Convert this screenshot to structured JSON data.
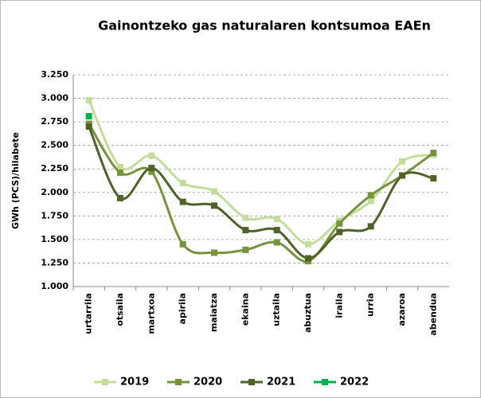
{
  "chart_data": {
    "type": "line",
    "title": "Gainontzeko gas naturalaren kontsumoa EAEn",
    "y_label": "GWh (PCS)/hilabete",
    "categories": [
      "urtarrila",
      "otsaila",
      "martxoa",
      "apirila",
      "maiatza",
      "ekaina",
      "uztaila",
      "abuztua",
      "iraila",
      "urria",
      "azaroa",
      "abendua"
    ],
    "series": [
      {
        "name": "2019",
        "color": "#c5dd9a",
        "values": [
          2.98,
          2.27,
          2.39,
          2.1,
          2.01,
          1.73,
          1.72,
          1.45,
          1.7,
          1.91,
          2.33,
          2.4
        ]
      },
      {
        "name": "2020",
        "color": "#77933c",
        "values": [
          2.73,
          2.21,
          2.22,
          1.45,
          1.36,
          1.39,
          1.47,
          1.27,
          1.67,
          1.97,
          2.18,
          2.42
        ]
      },
      {
        "name": "2021",
        "color": "#4f6228",
        "values": [
          2.7,
          1.94,
          2.26,
          1.9,
          1.86,
          1.6,
          1.6,
          1.3,
          1.58,
          1.64,
          2.18,
          2.15
        ]
      },
      {
        "name": "2022",
        "color": "#00b050",
        "values": [
          2.81,
          null,
          null,
          null,
          null,
          null,
          null,
          null,
          null,
          null,
          null,
          null
        ]
      }
    ],
    "ylim": [
      1.0,
      3.25
    ],
    "yticks": [
      {
        "value": 1.0,
        "label": "1.000"
      },
      {
        "value": 1.25,
        "label": "1.250"
      },
      {
        "value": 1.5,
        "label": "1.500"
      },
      {
        "value": 1.75,
        "label": "1.750"
      },
      {
        "value": 2.0,
        "label": "2.000"
      },
      {
        "value": 2.25,
        "label": "2.250"
      },
      {
        "value": 2.5,
        "label": "2.500"
      },
      {
        "value": 2.75,
        "label": "2.750"
      },
      {
        "value": 3.0,
        "label": "3.000"
      },
      {
        "value": 3.25,
        "label": "3.250"
      }
    ],
    "grid": true,
    "smooth": true,
    "legend": "bottom"
  }
}
